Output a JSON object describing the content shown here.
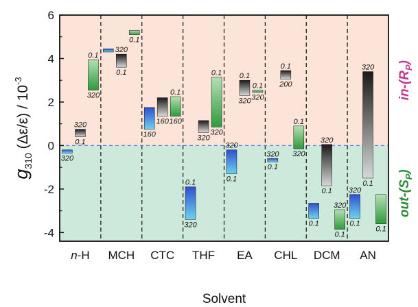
{
  "chart_data": {
    "type": "floating-bar",
    "xlabel": "Solvent",
    "ylabel_main": "g",
    "ylabel_sub": "310",
    "ylabel_rest": " (Δε/ε) / 10",
    "ylabel_sup": "-3",
    "ylim": [
      -4.4,
      6
    ],
    "yticks": [
      -4,
      -2,
      0,
      2,
      4,
      6
    ],
    "ytick_labels": [
      "-4",
      "-2",
      "0",
      "2",
      "4",
      "6"
    ],
    "categories": [
      "n-H",
      "MCH",
      "CTC",
      "THF",
      "EA",
      "CHL",
      "DCM",
      "AN"
    ],
    "category_labels": [
      {
        "italic": "n",
        "rest": "-H"
      },
      {
        "italic": "",
        "rest": "MCH"
      },
      {
        "italic": "",
        "rest": "CTC"
      },
      {
        "italic": "",
        "rest": "THF"
      },
      {
        "italic": "",
        "rest": "EA"
      },
      {
        "italic": "",
        "rest": "CHL"
      },
      {
        "italic": "",
        "rest": "DCM"
      },
      {
        "italic": "",
        "rest": "AN"
      }
    ],
    "regions": {
      "positive": {
        "label_italic": "in",
        "label_rest": "-(R",
        "label_sub": "P",
        "label_end": ")",
        "color": "#fde4d8",
        "text_color": "#c2388f"
      },
      "negative": {
        "label_italic": "out",
        "label_rest": "-(S",
        "label_sub": "P",
        "label_end": ")",
        "color": "#cde9dc",
        "text_color": "#2e8b3a"
      }
    },
    "bars": [
      {
        "category": "n-H",
        "slot": 0,
        "low": -0.35,
        "high": -0.2,
        "color": "blue",
        "top_label": "",
        "bottom_label": "320"
      },
      {
        "category": "n-H",
        "slot": 1,
        "low": 0.4,
        "high": 0.75,
        "color": "gray",
        "top_label": "320",
        "bottom_label": "0.1"
      },
      {
        "category": "n-H",
        "slot": 2,
        "low": 2.55,
        "high": 3.95,
        "color": "green",
        "top_label": "0.1",
        "bottom_label": "320"
      },
      {
        "category": "MCH",
        "slot": 0,
        "low": 4.3,
        "high": 4.45,
        "color": "blue",
        "top_label": "",
        "bottom_label": ""
      },
      {
        "category": "MCH",
        "slot": 1,
        "low": 3.6,
        "high": 4.2,
        "color": "gray",
        "top_label": "320",
        "bottom_label": "0.1"
      },
      {
        "category": "MCH",
        "slot": 2,
        "low": 5.1,
        "high": 5.3,
        "color": "green",
        "top_label": "",
        "bottom_label": "0.1"
      },
      {
        "category": "CTC",
        "slot": 0,
        "low": 0.75,
        "high": 1.75,
        "color": "blue",
        "top_label": "",
        "bottom_label": "160"
      },
      {
        "category": "CTC",
        "slot": 1,
        "low": 1.35,
        "high": 2.2,
        "color": "gray",
        "top_label": "",
        "bottom_label": "160"
      },
      {
        "category": "CTC",
        "slot": 2,
        "low": 1.35,
        "high": 2.25,
        "color": "green",
        "top_label": "0.1",
        "bottom_label": "160"
      },
      {
        "category": "THF",
        "slot": 0,
        "low": -3.4,
        "high": -1.9,
        "color": "blue",
        "top_label": "0.1",
        "bottom_label": "320"
      },
      {
        "category": "THF",
        "slot": 1,
        "low": 0.6,
        "high": 1.15,
        "color": "gray",
        "top_label": "",
        "bottom_label": "320"
      },
      {
        "category": "THF",
        "slot": 2,
        "low": 0.85,
        "high": 3.15,
        "color": "green",
        "top_label": "0.1",
        "bottom_label": "320"
      },
      {
        "category": "EA",
        "slot": 0,
        "low": -1.3,
        "high": -0.2,
        "color": "blue",
        "top_label": "320",
        "bottom_label": "0.1"
      },
      {
        "category": "EA",
        "slot": 1,
        "low": 2.3,
        "high": 3.0,
        "color": "gray",
        "top_label": "0.1",
        "bottom_label": "320"
      },
      {
        "category": "EA",
        "slot": 2,
        "low": 2.45,
        "high": 2.55,
        "color": "green",
        "top_label": "0.1",
        "bottom_label": "320"
      },
      {
        "category": "CHL",
        "slot": 0,
        "low": -0.75,
        "high": -0.6,
        "color": "blue",
        "top_label": "320",
        "bottom_label": "0.1"
      },
      {
        "category": "CHL",
        "slot": 1,
        "low": 3.05,
        "high": 3.45,
        "color": "gray",
        "top_label": "0.1",
        "bottom_label": "200"
      },
      {
        "category": "CHL",
        "slot": 2,
        "low": -0.15,
        "high": 0.9,
        "color": "green",
        "top_label": "0.1",
        "bottom_label": "320"
      },
      {
        "category": "DCM",
        "slot": 0,
        "low": -3.35,
        "high": -2.65,
        "color": "blue",
        "top_label": "",
        "bottom_label": "0.1"
      },
      {
        "category": "DCM",
        "slot": 1,
        "low": -1.85,
        "high": 0.05,
        "color": "gray",
        "top_label": "320",
        "bottom_label": "0.1"
      },
      {
        "category": "DCM",
        "slot": 2,
        "low": -3.85,
        "high": -2.95,
        "color": "green",
        "top_label": "320",
        "bottom_label": "0.1"
      },
      {
        "category": "AN",
        "slot": 0,
        "low": -3.35,
        "high": -2.25,
        "color": "blue",
        "top_label": "320",
        "bottom_label": "0.1"
      },
      {
        "category": "AN",
        "slot": 1,
        "low": -1.5,
        "high": 3.4,
        "color": "gray",
        "top_label": "320",
        "bottom_label": "0.1"
      },
      {
        "category": "AN",
        "slot": 2,
        "low": -3.6,
        "high": -2.25,
        "color": "green",
        "top_label": "",
        "bottom_label": "0.1"
      }
    ]
  }
}
